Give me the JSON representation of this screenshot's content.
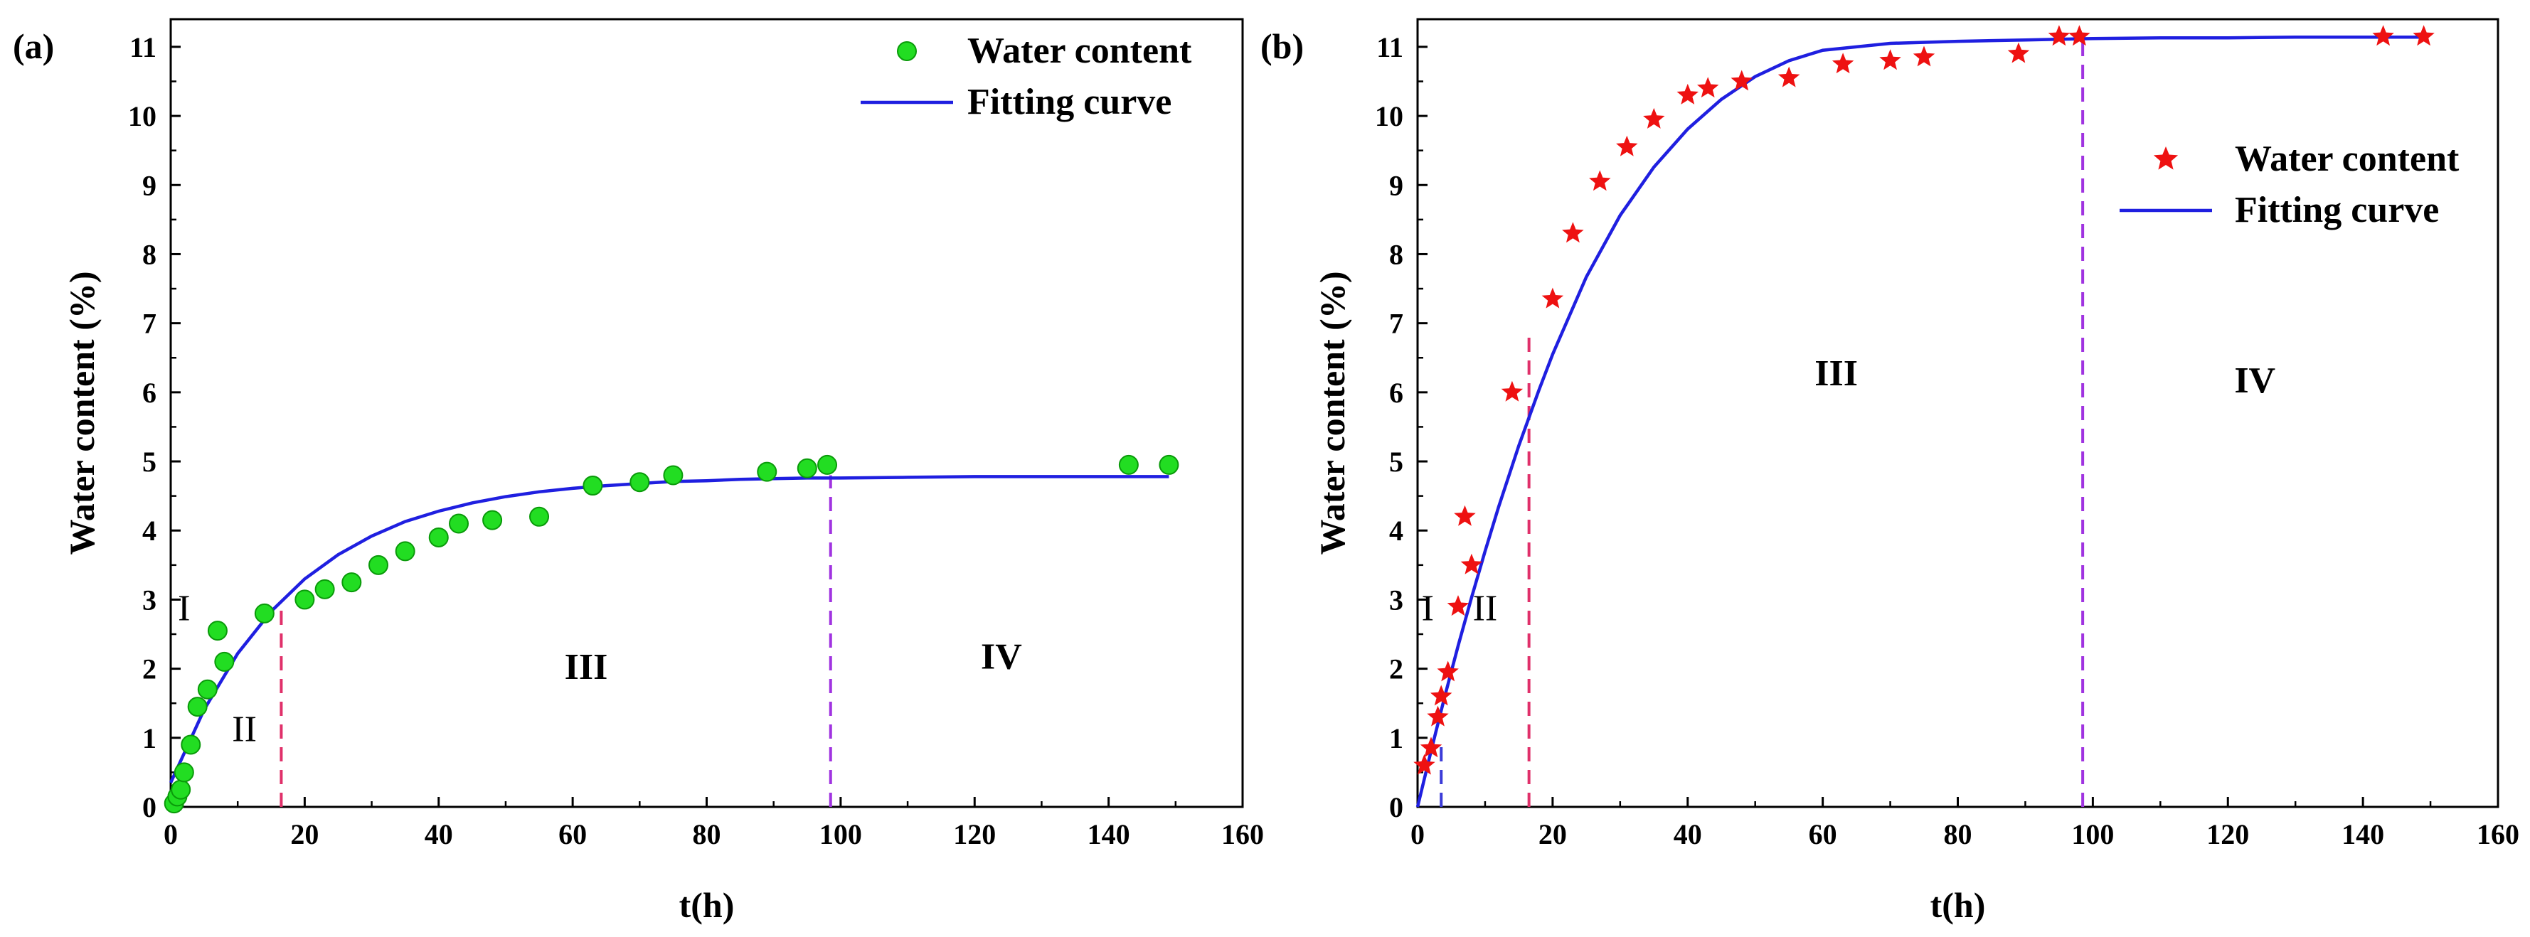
{
  "colors": {
    "fit_line": "#1f1fe0",
    "dot_green": "#22dd22",
    "star_red": "#ee1111",
    "dashed_pink": "#e0306a",
    "dashed_purple": "#a033e0",
    "dashed_blue": "#3b3bd8"
  },
  "chart_data": [
    {
      "panel_label": "(a)",
      "type": "scatter",
      "xlabel": "t(h)",
      "ylabel": "Water content (%)",
      "xlim": [
        0,
        160
      ],
      "ylim": [
        0,
        11.4
      ],
      "xticks": [
        0,
        20,
        40,
        60,
        80,
        100,
        120,
        140,
        160
      ],
      "yticks": [
        0,
        1,
        2,
        3,
        4,
        5,
        6,
        7,
        8,
        9,
        10,
        11
      ],
      "legend": {
        "position": "top-right",
        "entries": [
          "Water content",
          "Fitting curve"
        ]
      },
      "series": [
        {
          "name": "Water content",
          "marker": "green-dot",
          "x": [
            0.5,
            1,
            1.5,
            2,
            3,
            4,
            5.5,
            7,
            8,
            14,
            20,
            23,
            27,
            31,
            35,
            40,
            43,
            48,
            55,
            63,
            70,
            75,
            89,
            95,
            98,
            143,
            149
          ],
          "y": [
            0.05,
            0.15,
            0.25,
            0.5,
            0.9,
            1.45,
            1.7,
            2.55,
            2.1,
            2.8,
            3.0,
            3.15,
            3.25,
            3.5,
            3.7,
            3.9,
            4.1,
            4.15,
            4.2,
            4.65,
            4.7,
            4.8,
            4.85,
            4.9,
            4.95,
            4.95,
            4.95
          ]
        },
        {
          "name": "Fitting curve",
          "type": "line",
          "x": [
            0,
            5,
            10,
            15,
            20,
            25,
            30,
            35,
            40,
            45,
            50,
            55,
            60,
            65,
            70,
            75,
            80,
            85,
            90,
            95,
            100,
            110,
            120,
            130,
            140,
            149
          ],
          "y": [
            0.35,
            1.41,
            2.22,
            2.83,
            3.3,
            3.65,
            3.92,
            4.13,
            4.28,
            4.4,
            4.49,
            4.56,
            4.61,
            4.65,
            4.68,
            4.71,
            4.72,
            4.74,
            4.75,
            4.76,
            4.76,
            4.77,
            4.78,
            4.78,
            4.78,
            4.78
          ]
        }
      ],
      "boundaries": [
        {
          "x": 16.5,
          "y_top": 2.85,
          "color": "dashed_pink"
        },
        {
          "x": 98.5,
          "y_top": 4.8,
          "color": "dashed_purple"
        }
      ],
      "regions": [
        {
          "label": "I",
          "x": 2,
          "y": 2.7,
          "bold": false
        },
        {
          "label": "II",
          "x": 11,
          "y": 0.95,
          "bold": false
        },
        {
          "label": "III",
          "x": 62,
          "y": 1.85,
          "bold": true
        },
        {
          "label": "IV",
          "x": 124,
          "y": 2.0,
          "bold": true
        }
      ]
    },
    {
      "panel_label": "(b)",
      "type": "scatter",
      "xlabel": "t(h)",
      "ylabel": "Water content (%)",
      "xlim": [
        0,
        160
      ],
      "ylim": [
        0,
        11.4
      ],
      "xticks": [
        0,
        20,
        40,
        60,
        80,
        100,
        120,
        140,
        160
      ],
      "yticks": [
        0,
        1,
        2,
        3,
        4,
        5,
        6,
        7,
        8,
        9,
        10,
        11
      ],
      "legend": {
        "position": "top-right",
        "entries": [
          "Water content",
          "Fitting curve"
        ]
      },
      "series": [
        {
          "name": "Water content",
          "marker": "red-star",
          "x": [
            1,
            2,
            3,
            3.5,
            4.5,
            6,
            7,
            8,
            14,
            20,
            23,
            27,
            31,
            35,
            40,
            43,
            48,
            55,
            63,
            70,
            75,
            89,
            95,
            98,
            143,
            149
          ],
          "y": [
            0.6,
            0.85,
            1.3,
            1.6,
            1.95,
            2.9,
            4.2,
            3.5,
            6.0,
            7.35,
            8.3,
            9.05,
            9.55,
            9.95,
            10.3,
            10.4,
            10.5,
            10.55,
            10.75,
            10.8,
            10.85,
            10.9,
            11.15,
            11.15,
            11.15,
            11.15
          ]
        },
        {
          "name": "Fitting curve",
          "type": "line",
          "x": [
            0,
            2,
            4,
            6,
            8,
            10,
            12,
            15,
            18,
            20,
            25,
            30,
            35,
            40,
            45,
            50,
            55,
            60,
            70,
            80,
            90,
            100,
            110,
            120,
            130,
            140,
            149
          ],
          "y": [
            0.0,
            0.81,
            1.59,
            2.33,
            3.03,
            3.7,
            4.34,
            5.23,
            6.04,
            6.55,
            7.67,
            8.56,
            9.26,
            9.81,
            10.24,
            10.57,
            10.8,
            10.95,
            11.05,
            11.08,
            11.1,
            11.12,
            11.13,
            11.13,
            11.14,
            11.14,
            11.14
          ]
        }
      ],
      "boundaries": [
        {
          "x": 3.5,
          "y_top": 0.9,
          "color": "dashed_blue"
        },
        {
          "x": 16.5,
          "y_top": 6.8,
          "color": "dashed_pink"
        },
        {
          "x": 98.5,
          "y_top": 11.1,
          "color": "dashed_purple"
        }
      ],
      "regions": [
        {
          "label": "I",
          "x": 1.5,
          "y": 2.7,
          "bold": false
        },
        {
          "label": "II",
          "x": 10,
          "y": 2.7,
          "bold": false
        },
        {
          "label": "III",
          "x": 62,
          "y": 6.1,
          "bold": true
        },
        {
          "label": "IV",
          "x": 124,
          "y": 6.0,
          "bold": true
        }
      ]
    }
  ]
}
